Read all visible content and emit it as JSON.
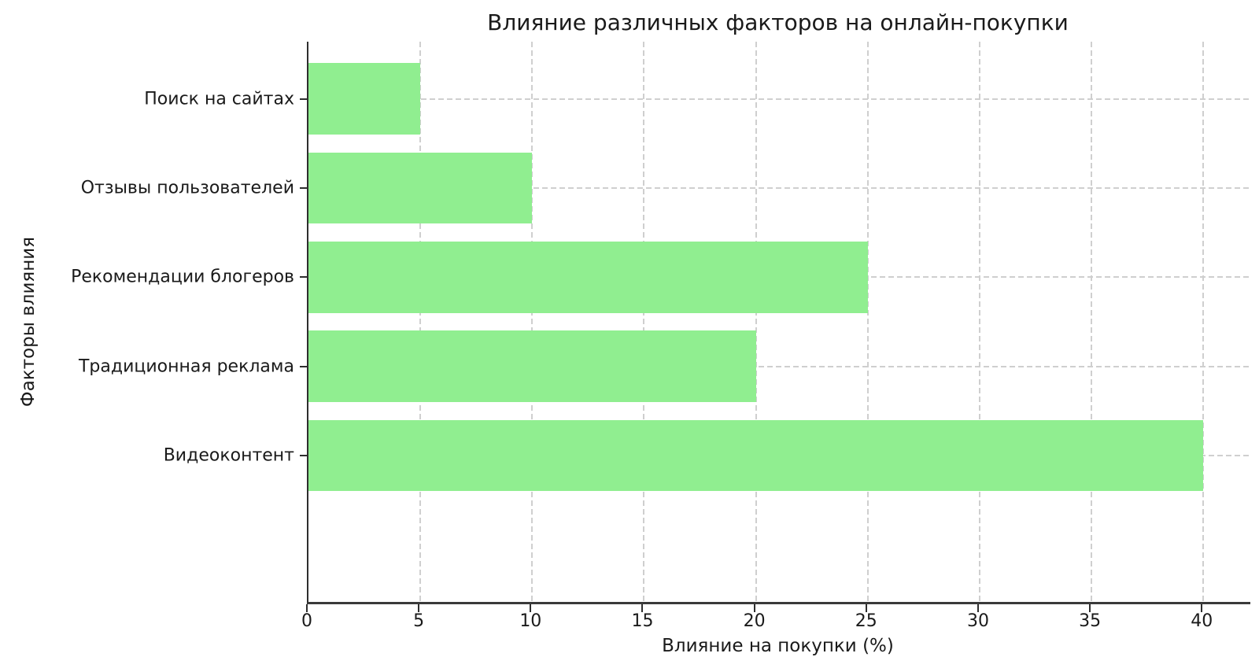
{
  "chart_data": {
    "type": "bar",
    "orientation": "horizontal",
    "title": "Влияние различных факторов на онлайн-покупки",
    "xlabel": "Влияние на покупки (%)",
    "ylabel": "Факторы влияния",
    "categories": [
      "Поиск на сайтах",
      "Отзывы пользователей",
      "Рекомендации блогеров",
      "Традиционная реклама",
      "Видеоконтент"
    ],
    "values": [
      5,
      10,
      25,
      20,
      40
    ],
    "xticks": [
      0,
      5,
      10,
      15,
      20,
      25,
      30,
      35,
      40
    ],
    "xlim": [
      0,
      42.1
    ],
    "grid": "dashed",
    "legend": "none",
    "colors": {
      "bar": "#90EE90",
      "grid": "#cfcfcf",
      "spine": "#2e2e2e",
      "text": "#1a1a1a",
      "background": "#ffffff"
    }
  }
}
